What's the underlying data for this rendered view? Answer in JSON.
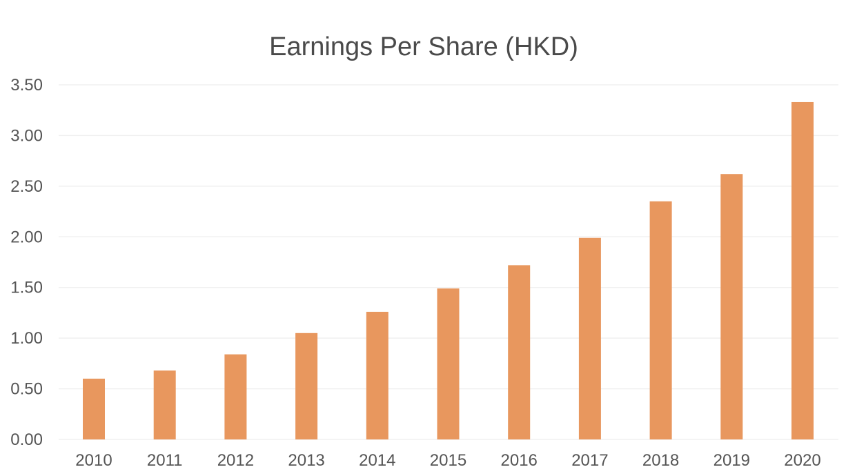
{
  "chart_data": {
    "type": "bar",
    "title": "Earnings Per Share (HKD)",
    "xlabel": "",
    "ylabel": "",
    "categories": [
      "2010",
      "2011",
      "2012",
      "2013",
      "2014",
      "2015",
      "2016",
      "2017",
      "2018",
      "2019",
      "2020"
    ],
    "values": [
      0.6,
      0.68,
      0.84,
      1.05,
      1.26,
      1.49,
      1.72,
      1.99,
      2.35,
      2.62,
      3.33
    ],
    "ylim": [
      0,
      3.5
    ],
    "yticks": [
      "0.00",
      "0.50",
      "1.00",
      "1.50",
      "2.00",
      "2.50",
      "3.00",
      "3.50"
    ],
    "grid": true,
    "legend": "none",
    "bar_color": "#e8975e",
    "grid_color": "#f0f0f0",
    "text_color": "#555555"
  }
}
